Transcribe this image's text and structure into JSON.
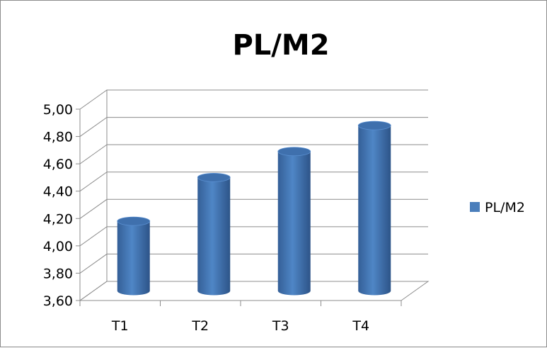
{
  "chart_data": {
    "type": "bar",
    "title": "PL/M2",
    "categories": [
      "T1",
      "T2",
      "T3",
      "T4"
    ],
    "series": [
      {
        "name": "PL/M2",
        "values": [
          4.11,
          4.43,
          4.62,
          4.81
        ],
        "color": "#4a7ebb"
      }
    ],
    "ylim": [
      3.6,
      5.0
    ],
    "yticks": [
      3.6,
      3.8,
      4.0,
      4.2,
      4.4,
      4.6,
      4.8,
      5.0
    ],
    "ytick_labels": [
      "3,60",
      "3,80",
      "4,00",
      "4,20",
      "4,40",
      "4,60",
      "4,80",
      "5,00"
    ],
    "xlabel": "",
    "ylabel": "",
    "grid": true,
    "legend_position": "right",
    "style": "3d-cylinder"
  }
}
